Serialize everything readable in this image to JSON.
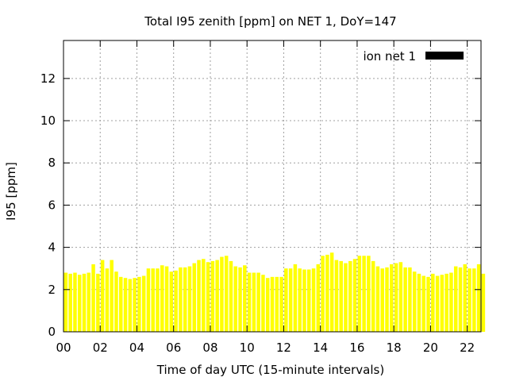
{
  "chart_data": {
    "type": "bar",
    "title": "Total I95 zenith [ppm] on NET 1, DoY=147",
    "xlabel": "Time of day UTC (15-minute intervals)",
    "ylabel": "I95 [ppm]",
    "legend": {
      "label": "ion net 1",
      "placement": "top-right",
      "swatch_color": "#000000"
    },
    "bar_color": "#ffff00",
    "grid": true,
    "xlim": [
      0,
      22.75
    ],
    "ylim": [
      0,
      13.8
    ],
    "x_ticks": [
      {
        "value": 0,
        "label": "00"
      },
      {
        "value": 2,
        "label": "02"
      },
      {
        "value": 4,
        "label": "04"
      },
      {
        "value": 6,
        "label": "06"
      },
      {
        "value": 8,
        "label": "08"
      },
      {
        "value": 10,
        "label": "10"
      },
      {
        "value": 12,
        "label": "12"
      },
      {
        "value": 14,
        "label": "14"
      },
      {
        "value": 16,
        "label": "16"
      },
      {
        "value": 18,
        "label": "18"
      },
      {
        "value": 20,
        "label": "20"
      },
      {
        "value": 22,
        "label": "22"
      }
    ],
    "y_ticks": [
      {
        "value": 0,
        "label": "0"
      },
      {
        "value": 2,
        "label": "2"
      },
      {
        "value": 4,
        "label": "4"
      },
      {
        "value": 6,
        "label": "6"
      },
      {
        "value": 8,
        "label": "8"
      },
      {
        "value": 10,
        "label": "10"
      },
      {
        "value": 12,
        "label": "12"
      }
    ],
    "x_step_hours": 0.25,
    "values": [
      2.8,
      2.75,
      2.8,
      2.7,
      2.75,
      2.8,
      3.2,
      2.75,
      3.4,
      3.0,
      3.4,
      2.85,
      2.6,
      2.55,
      2.5,
      2.55,
      2.6,
      2.65,
      3.0,
      3.0,
      3.0,
      3.15,
      3.1,
      2.85,
      2.9,
      3.05,
      3.05,
      3.1,
      3.25,
      3.4,
      3.45,
      3.3,
      3.35,
      3.4,
      3.55,
      3.6,
      3.35,
      3.1,
      3.05,
      3.15,
      2.8,
      2.8,
      2.8,
      2.7,
      2.55,
      2.6,
      2.6,
      2.6,
      3.0,
      3.0,
      3.2,
      3.0,
      2.95,
      2.95,
      3.0,
      3.2,
      3.6,
      3.65,
      3.75,
      3.4,
      3.35,
      3.25,
      3.35,
      3.45,
      3.6,
      3.6,
      3.6,
      3.35,
      3.1,
      3.0,
      3.05,
      3.2,
      3.25,
      3.3,
      3.05,
      3.05,
      2.85,
      2.75,
      2.65,
      2.6,
      2.75,
      2.65,
      2.7,
      2.75,
      2.8,
      3.1,
      3.05,
      3.2,
      3.0,
      3.0,
      3.2,
      2.75
    ]
  }
}
